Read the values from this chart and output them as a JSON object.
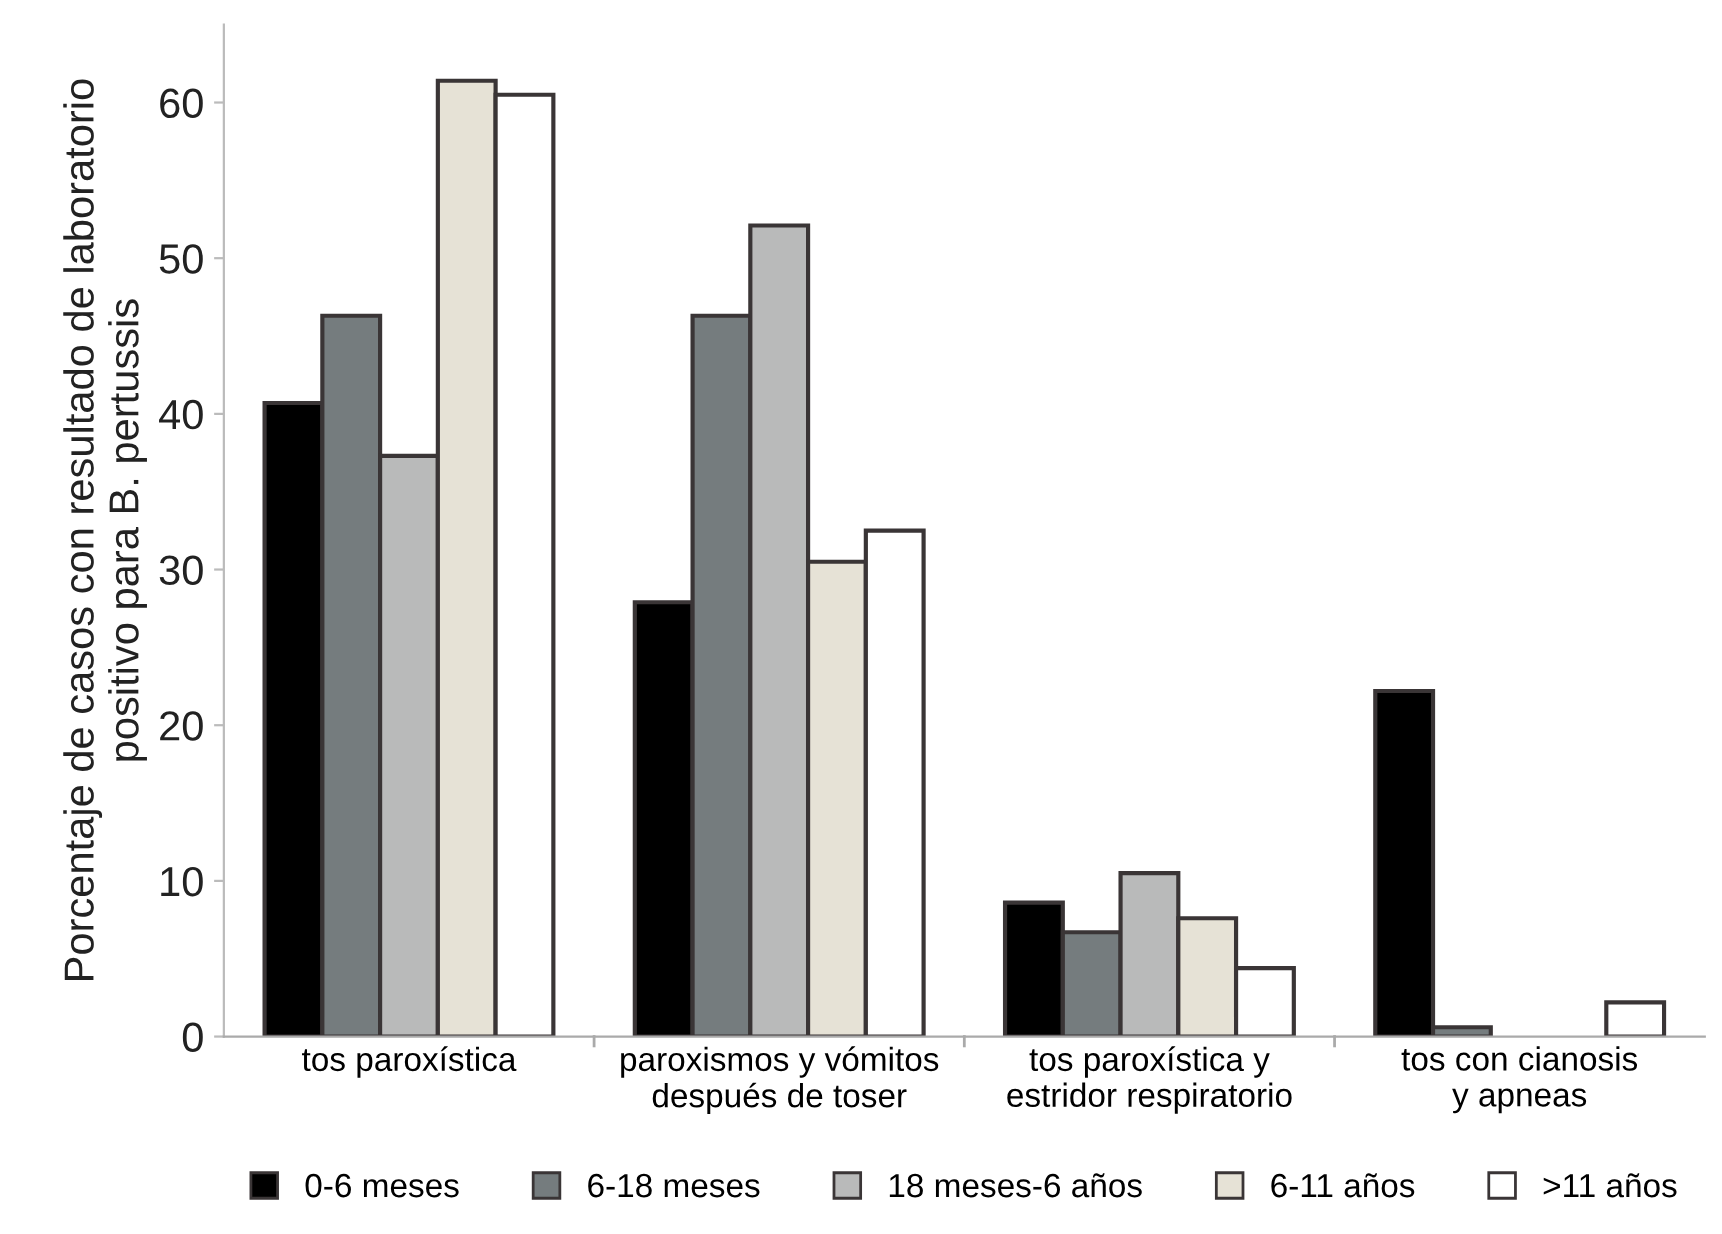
{
  "chart_data": {
    "type": "bar",
    "ylabel": "Porcentaje de casos con resultado de laboratorio\npositivo para B. pertussis",
    "categories": [
      "tos paroxística",
      "paroxismos y vómitos\ndespués de toser",
      "tos paroxística y\nestridor respiratorio",
      "tos con cianosis\ny apneas"
    ],
    "series": [
      {
        "name": "0-6 meses",
        "color": "#000000",
        "values": [
          40.7,
          27.9,
          8.6,
          22.2
        ]
      },
      {
        "name": "6-18 meses",
        "color": "#757c7e",
        "values": [
          46.3,
          46.3,
          6.7,
          0.6
        ]
      },
      {
        "name": "18 meses-6 años",
        "color": "#b9baba",
        "values": [
          37.3,
          52.1,
          10.5,
          null
        ]
      },
      {
        "name": "6-11 años",
        "color": "#e6e2d6",
        "values": [
          61.4,
          30.5,
          7.6,
          null
        ]
      },
      {
        "name": ">11 años",
        "color": "#ffffff",
        "values": [
          60.5,
          32.5,
          4.4,
          2.2
        ]
      }
    ],
    "ylim": [
      0,
      65
    ],
    "yticks": [
      0,
      10,
      20,
      30,
      40,
      50,
      60
    ],
    "grid": false,
    "legend": "bottom"
  }
}
